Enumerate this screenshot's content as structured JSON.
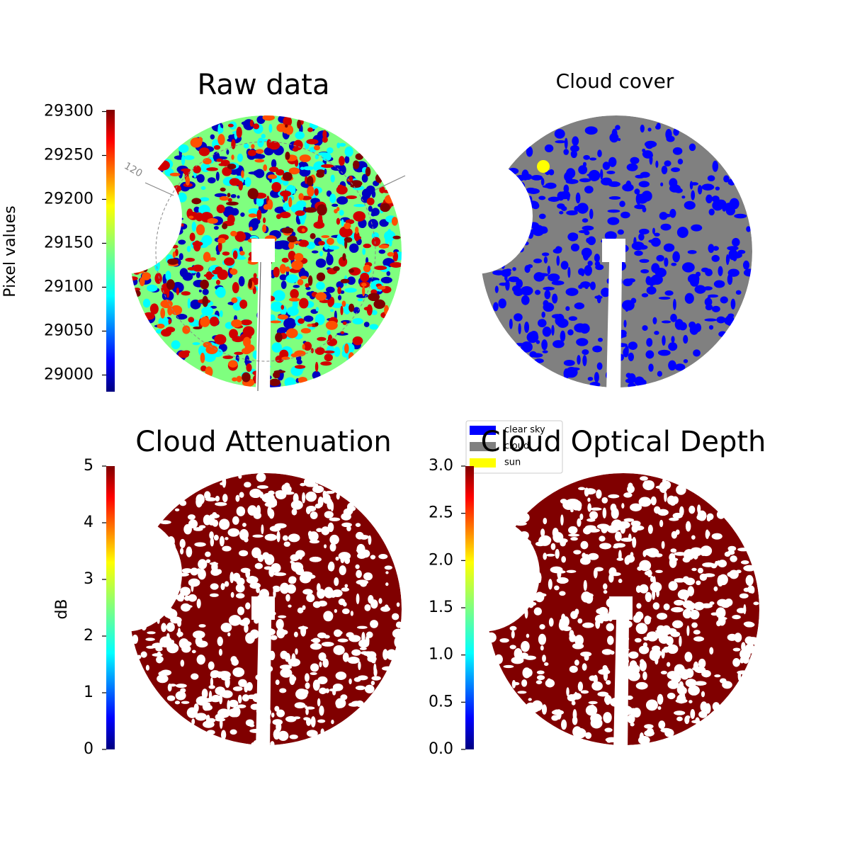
{
  "chart_data": [
    {
      "type": "image",
      "title": "Raw data",
      "ylabel": "Pixel values",
      "colormap": "jet",
      "ylim": [
        28981,
        29302
      ],
      "yticks": [
        29000,
        29050,
        29100,
        29150,
        29200,
        29250,
        29300
      ],
      "annotation": "120"
    },
    {
      "type": "image",
      "title": "Cloud cover",
      "legend": [
        {
          "name": "clear sky",
          "color": "#0000ff"
        },
        {
          "name": "cloud",
          "color": "#808080"
        },
        {
          "name": "sun",
          "color": "#ffff00"
        }
      ]
    },
    {
      "type": "image",
      "title": "Cloud Attenuation",
      "ylabel": "dB",
      "colormap": "jet",
      "ylim": [
        0,
        5
      ],
      "yticks": [
        0,
        1,
        2,
        3,
        4,
        5
      ]
    },
    {
      "type": "image",
      "title": "Cloud Optical Depth",
      "colormap": "jet",
      "ylim": [
        0,
        3
      ],
      "yticks": [
        {
          "value": 0,
          "label": "0.0"
        },
        0.5,
        {
          "value": 1,
          "label": "1.0"
        },
        1.5,
        {
          "value": 2,
          "label": "2.0"
        },
        2.5,
        {
          "value": 3,
          "label": "3.0"
        }
      ]
    }
  ]
}
